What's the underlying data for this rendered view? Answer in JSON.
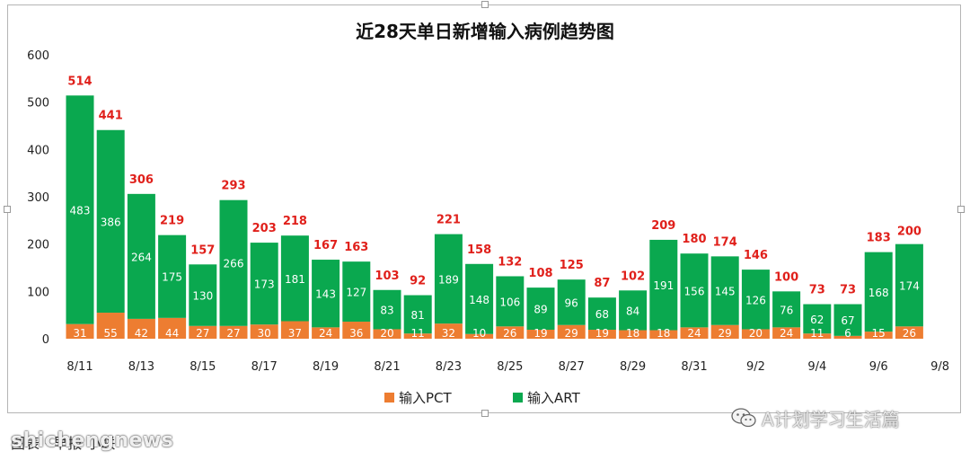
{
  "chart_data": {
    "type": "bar",
    "stacked": true,
    "title": "近28天单日新增输入病例趋势图",
    "categories": [
      "8/11",
      "8/12",
      "8/13",
      "8/14",
      "8/15",
      "8/16",
      "8/17",
      "8/18",
      "8/19",
      "8/20",
      "8/21",
      "8/22",
      "8/23",
      "8/24",
      "8/25",
      "8/26",
      "8/27",
      "8/28",
      "8/29",
      "8/30",
      "8/31",
      "9/1",
      "9/2",
      "9/3",
      "9/4",
      "9/5",
      "9/6",
      "9/7",
      "9/8"
    ],
    "x_tick_labels": [
      "8/11",
      "8/13",
      "8/15",
      "8/17",
      "8/19",
      "8/21",
      "8/23",
      "8/25",
      "8/27",
      "8/29",
      "8/31",
      "9/2",
      "9/4",
      "9/6",
      "9/8"
    ],
    "series": [
      {
        "name": "输入PCT",
        "color": "#ed7d31",
        "values": [
          31,
          55,
          42,
          44,
          27,
          27,
          30,
          37,
          24,
          36,
          20,
          11,
          32,
          10,
          26,
          19,
          29,
          19,
          18,
          18,
          24,
          29,
          20,
          24,
          11,
          6,
          15,
          26,
          null
        ]
      },
      {
        "name": "输入ART",
        "color": "#0aa84f",
        "values": [
          483,
          386,
          264,
          175,
          130,
          266,
          173,
          181,
          143,
          127,
          83,
          81,
          189,
          148,
          106,
          89,
          96,
          68,
          84,
          191,
          156,
          145,
          126,
          76,
          62,
          67,
          168,
          174,
          null
        ]
      }
    ],
    "totals": [
      514,
      441,
      306,
      219,
      157,
      293,
      203,
      218,
      167,
      163,
      103,
      92,
      221,
      158,
      132,
      108,
      125,
      87,
      102,
      209,
      180,
      174,
      146,
      100,
      73,
      73,
      183,
      200,
      null
    ],
    "highlight_last_total": true,
    "ylim": [
      0,
      600
    ],
    "yticks": [
      0,
      100,
      200,
      300,
      400,
      500,
      600
    ],
    "grid": false,
    "legend_position": "bottom-center",
    "total_label_color": "#e0201b"
  },
  "watermark": {
    "text": "A计划学习生活篇",
    "icon": "wechat-icon"
  },
  "caption": {
    "text": "图表 · 早报 小联"
  },
  "site_watermark": {
    "text": "shichengnews"
  }
}
